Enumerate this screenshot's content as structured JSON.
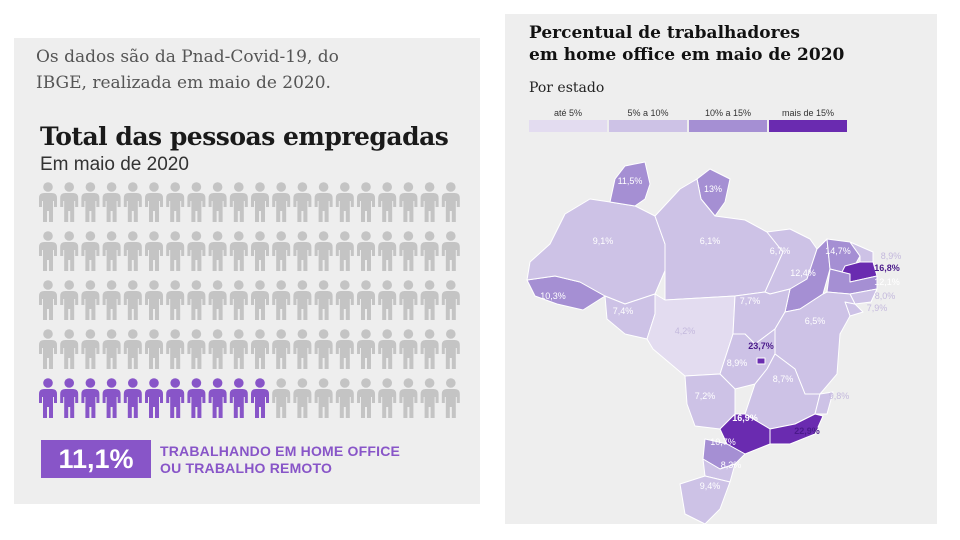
{
  "left": {
    "intro_line1": "Os dados são da Pnad-Covid-19, do",
    "intro_line2": "IBGE, realizada em maio de 2020.",
    "title": "Total das pessoas empregadas",
    "subtitle": "Em maio de 2020",
    "pct_value": "11,1%",
    "pct_label_line1": "TRABALHANDO EM HOME OFFICE",
    "pct_label_line2": "OU TRABALHO REMOTO",
    "colors": {
      "gray": "#c4c4c4",
      "purple": "#8855c8"
    }
  },
  "right": {
    "title_line1": "Percentual de trabalhadores",
    "title_line2": "em home office em maio de 2020",
    "subtitle": "Por estado",
    "legend": [
      {
        "label": "até 5%",
        "color": "#e3dcf0"
      },
      {
        "label": "5% a 10%",
        "color": "#cdc2e6"
      },
      {
        "label": "10% a 15%",
        "color": "#a58fd3"
      },
      {
        "label": "mais de 15%",
        "color": "#6a2bb0"
      }
    ]
  },
  "chart_data": [
    {
      "type": "pictogram",
      "title": "Total das pessoas empregadas",
      "subtitle": "Em maio de 2020",
      "rows": 5,
      "cols": 20,
      "highlighted": 11,
      "value": "11,1%",
      "label": "TRABALHANDO EM HOME OFFICE OU TRABALHO REMOTO"
    },
    {
      "type": "choropleth",
      "title": "Percentual de trabalhadores em home office em maio de 2020",
      "subtitle": "Por estado",
      "classes": [
        "até 5%",
        "5% a 10%",
        "10% a 15%",
        "mais de 15%"
      ],
      "values": [
        {
          "id": "rr",
          "label": "11,5%",
          "class": 2
        },
        {
          "id": "ap",
          "label": "13%",
          "class": 2
        },
        {
          "id": "am",
          "label": "9,1%",
          "class": 1
        },
        {
          "id": "pa",
          "label": "6,1%",
          "class": 1
        },
        {
          "id": "ma",
          "label": "6,7%",
          "class": 1
        },
        {
          "id": "ce",
          "label": "14,7%",
          "class": 2
        },
        {
          "id": "rn",
          "label": "8,9%",
          "class": 1
        },
        {
          "id": "pi",
          "label": "12,4%",
          "class": 2
        },
        {
          "id": "pb",
          "label": "16,8%",
          "class": 3
        },
        {
          "id": "pe",
          "label": "12,1%",
          "class": 2
        },
        {
          "id": "al",
          "label": "8,0%",
          "class": 1
        },
        {
          "id": "se",
          "label": "7,9%",
          "class": 1
        },
        {
          "id": "ac",
          "label": "10,3%",
          "class": 2
        },
        {
          "id": "ro",
          "label": "7,4%",
          "class": 1
        },
        {
          "id": "mt",
          "label": "4,2%",
          "class": 0
        },
        {
          "id": "to",
          "label": "7,7%",
          "class": 1
        },
        {
          "id": "ba",
          "label": "6,5%",
          "class": 1
        },
        {
          "id": "df",
          "label": "23,7%",
          "class": 3
        },
        {
          "id": "go",
          "label": "8,9%",
          "class": 1
        },
        {
          "id": "mg",
          "label": "8,7%",
          "class": 1
        },
        {
          "id": "es",
          "label": "9,8%",
          "class": 1
        },
        {
          "id": "ms",
          "label": "7,2%",
          "class": 1
        },
        {
          "id": "sp",
          "label": "16,9%",
          "class": 3
        },
        {
          "id": "rj",
          "label": "22,9%",
          "class": 3
        },
        {
          "id": "pr",
          "label": "10,7%",
          "class": 2
        },
        {
          "id": "sc",
          "label": "8,3%",
          "class": 1
        },
        {
          "id": "rs",
          "label": "9,4%",
          "class": 1
        }
      ]
    }
  ]
}
